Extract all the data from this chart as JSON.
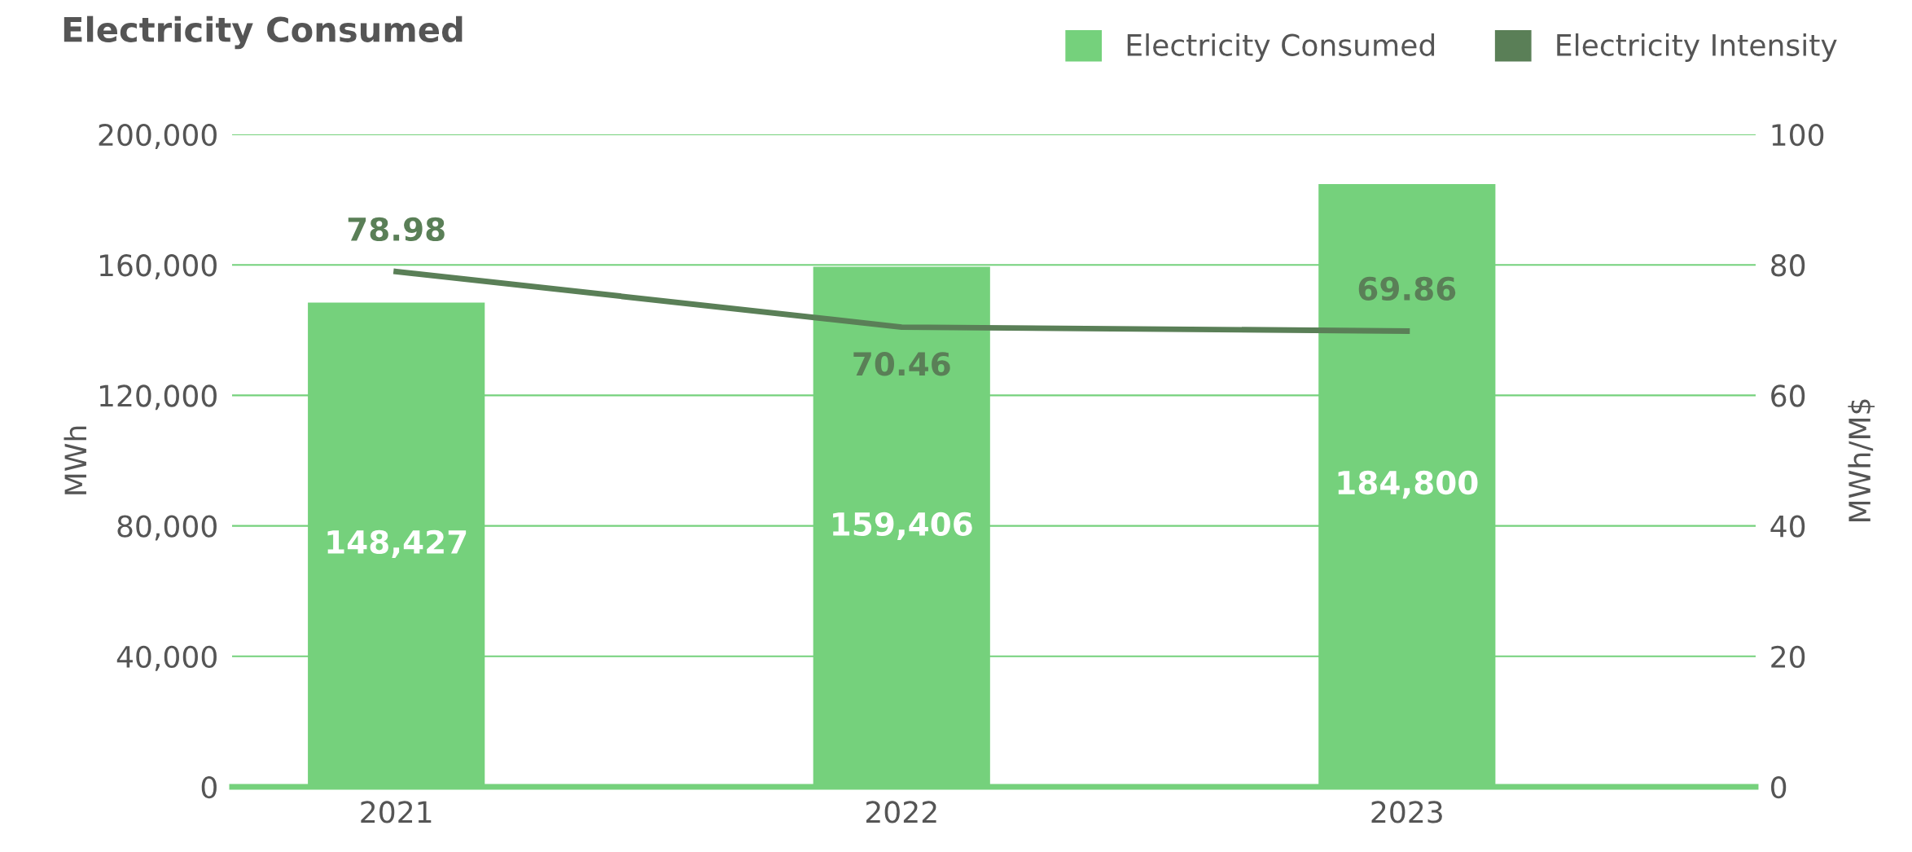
{
  "chart_data": {
    "type": "bar",
    "title": "Electricity Consumed",
    "categories": [
      "2021",
      "2022",
      "2023"
    ],
    "series": [
      {
        "name": "Electricity Consumed",
        "color": "#75d17c",
        "values": [
          148427,
          159406,
          184800
        ],
        "value_labels": [
          "148,427",
          "159,406",
          "184,800"
        ]
      },
      {
        "name": "Electricity Intensity",
        "type": "line",
        "axis": "y2",
        "color": "#5a7f57",
        "values": [
          78.98,
          70.46,
          69.86
        ]
      }
    ],
    "ylabel": "MWh",
    "y2label": "MWh/M$",
    "ylim": [
      0,
      200000
    ],
    "yticks": [
      {
        "value": 0,
        "label": "0"
      },
      {
        "value": 40000,
        "label": "40,000"
      },
      {
        "value": 80000,
        "label": "80,000"
      },
      {
        "value": 120000,
        "label": "120,000"
      },
      {
        "value": 160000,
        "label": "160,000"
      },
      {
        "value": 200000,
        "label": "200,000"
      }
    ],
    "y2lim": [
      0,
      100
    ],
    "y2ticks": [
      0,
      20,
      40,
      60,
      80,
      100
    ],
    "grid": "y",
    "legend": "top right",
    "data_labels": true,
    "marker": "none",
    "line_style": "solid"
  }
}
